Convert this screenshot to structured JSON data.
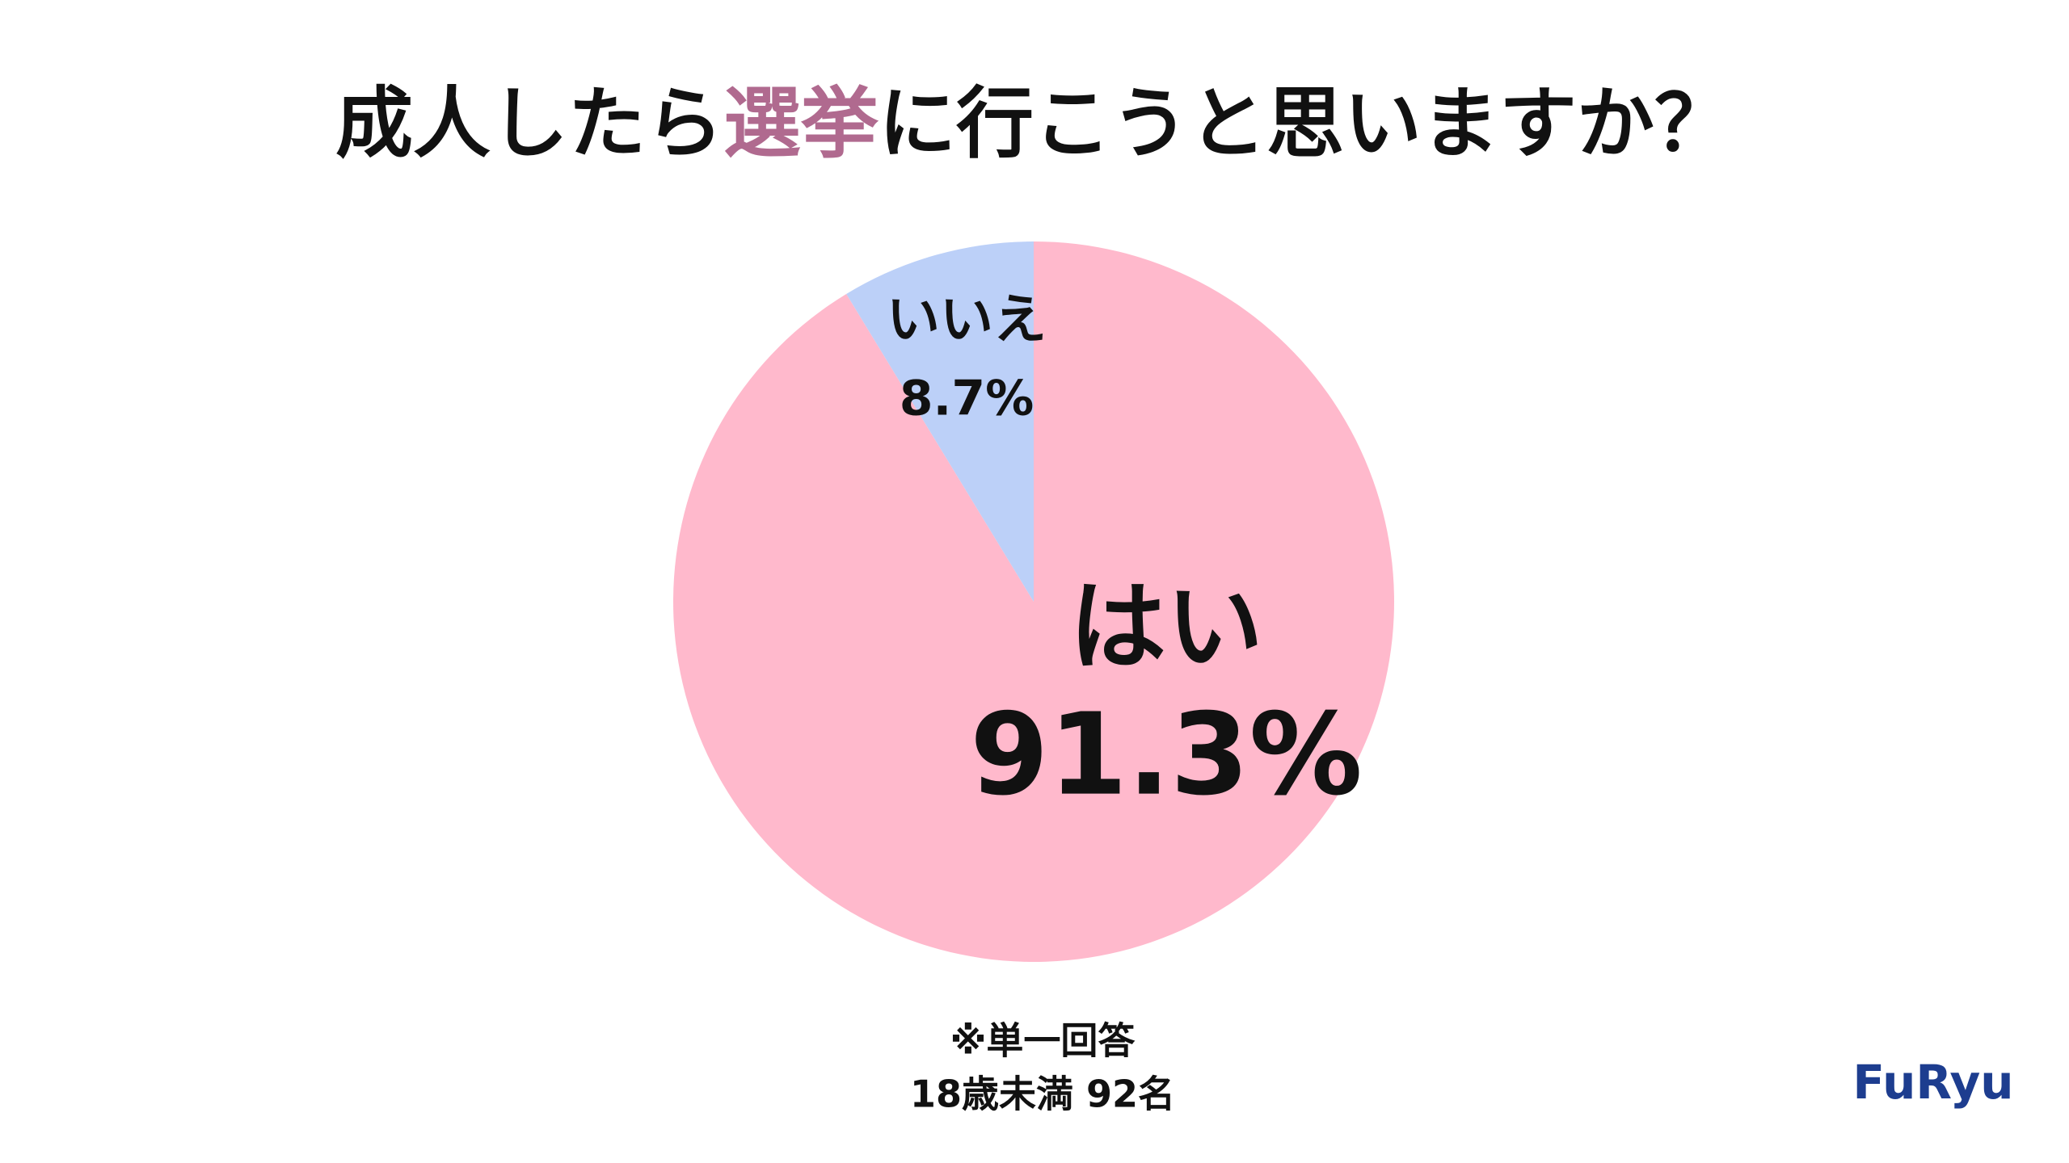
{
  "chart_data": {
    "type": "pie",
    "title": [
      {
        "text": "成人したら"
      },
      {
        "text": "選挙",
        "color": "#b06a8f"
      },
      {
        "text": "に行こうと思いますか？"
      }
    ],
    "categories": [
      "はい",
      "いいえ"
    ],
    "values": [
      91.3,
      8.7
    ],
    "value_labels": [
      "91.3%",
      "8.7%"
    ],
    "colors": [
      "#ffb9cc",
      "#bcd0f8"
    ],
    "notes": [
      "※単一回答",
      "18歳未満 92名"
    ],
    "logo": "FuRyu"
  }
}
